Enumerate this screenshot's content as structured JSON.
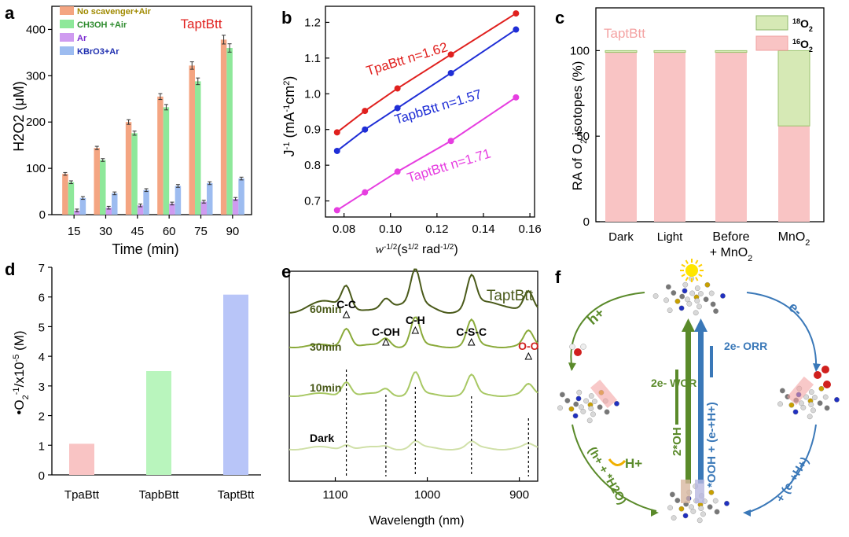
{
  "chart_data": [
    {
      "panel": "a",
      "type": "bar",
      "title": "TaptBtt",
      "xlabel": "Time (min)",
      "ylabel": "H2O2 (μM)",
      "ylim": [
        0,
        450
      ],
      "yticks": [
        "0",
        "100",
        "200",
        "300",
        "400"
      ],
      "categories": [
        "15",
        "30",
        "45",
        "60",
        "75",
        "90"
      ],
      "legend_position": "top-left",
      "series": [
        {
          "name": "No scavenger+Air",
          "color": "#f4a582",
          "values": [
            88,
            144,
            200,
            255,
            322,
            378
          ]
        },
        {
          "name": "CH3OH +Air",
          "color": "#8ee89a",
          "values": [
            70,
            118,
            176,
            232,
            288,
            360
          ]
        },
        {
          "name": "Ar",
          "color": "#cf9bf0",
          "values": [
            9,
            15,
            20,
            24,
            28,
            34
          ]
        },
        {
          "name": "KBrO3+Ar",
          "color": "#9dbcf0",
          "values": [
            36,
            46,
            53,
            62,
            68,
            78
          ]
        }
      ],
      "legend_text_colors": [
        "#a08a00",
        "#2e8b2e",
        "#7a2ad0",
        "#1f2fb0"
      ]
    },
    {
      "panel": "b",
      "type": "line",
      "xlabel": "w-1/2(s1/2 rad-1/2)",
      "ylabel": "J-1 (mA-1cm2)",
      "xlim": [
        0.072,
        0.162
      ],
      "ylim": [
        0.655,
        1.245
      ],
      "xticks": [
        "0.08",
        "0.10",
        "0.12",
        "0.14",
        "0.16"
      ],
      "yticks": [
        "0.7",
        "0.8",
        "0.9",
        "1.0",
        "1.1",
        "1.2"
      ],
      "x": [
        0.077,
        0.089,
        0.103,
        0.126,
        0.154
      ],
      "series": [
        {
          "name": "TpaBtt n=1.62",
          "color": "#e0201e",
          "values": [
            0.892,
            0.952,
            1.015,
            1.11,
            1.225
          ]
        },
        {
          "name": "TapbBtt n=1.57",
          "color": "#1f2ed6",
          "values": [
            0.84,
            0.9,
            0.96,
            1.058,
            1.18
          ]
        },
        {
          "name": "TaptBtt n=1.71",
          "color": "#e63ee0",
          "values": [
            0.674,
            0.724,
            0.782,
            0.868,
            0.99
          ]
        }
      ]
    },
    {
      "panel": "c",
      "type": "bar",
      "annotation": "TaptBtt",
      "ylabel": "RA of O2 isotopes (%)",
      "ylim": [
        0,
        125
      ],
      "yticks": [
        "0",
        "50",
        "100"
      ],
      "categories": [
        "Dark",
        "Light",
        "Before + MnO2",
        "MnO2"
      ],
      "series": [
        {
          "name": "16O2",
          "color": "#f9c4c4",
          "values": [
            99,
            99,
            99,
            56
          ]
        },
        {
          "name": "18O2",
          "color": "#d6e9b5",
          "values": [
            1,
            1,
            1,
            44
          ]
        }
      ],
      "legend_position": "top-right"
    },
    {
      "panel": "d",
      "type": "bar",
      "ylabel": "•O2-1/x10-5 (M)",
      "ylim": [
        0,
        7
      ],
      "yticks": [
        "0",
        "1",
        "2",
        "3",
        "4",
        "5",
        "6",
        "7"
      ],
      "categories": [
        "TpaBtt",
        "TapbBtt",
        "TaptBtt"
      ],
      "values": [
        1.05,
        3.5,
        6.08
      ],
      "colors": [
        "#f9c4c4",
        "#b9f5bd",
        "#b8c5f8"
      ]
    },
    {
      "panel": "e",
      "type": "line",
      "title": "TaptBtt",
      "xlabel": "Wavelength (nm)",
      "xticks": [
        "1100",
        "1000",
        "900"
      ],
      "series_labels": [
        "60min",
        "30min",
        "10min",
        "Dark"
      ],
      "peak_labels": [
        "C-C",
        "C-OH",
        "C-H",
        "C-S-C",
        "O-O"
      ]
    }
  ],
  "diagram_f": {
    "label": "f",
    "left_arrow": "h+",
    "right_arrow": "e-",
    "left_bottom": "(h+ + *H2O)",
    "right_bottom": "+ (e-+H+)",
    "h_plus_release": "H+",
    "wor": "2e- WOR",
    "orr": "2e- ORR",
    "center_left": "2*OH",
    "center_right": "*OOH + (e-+H+)"
  }
}
